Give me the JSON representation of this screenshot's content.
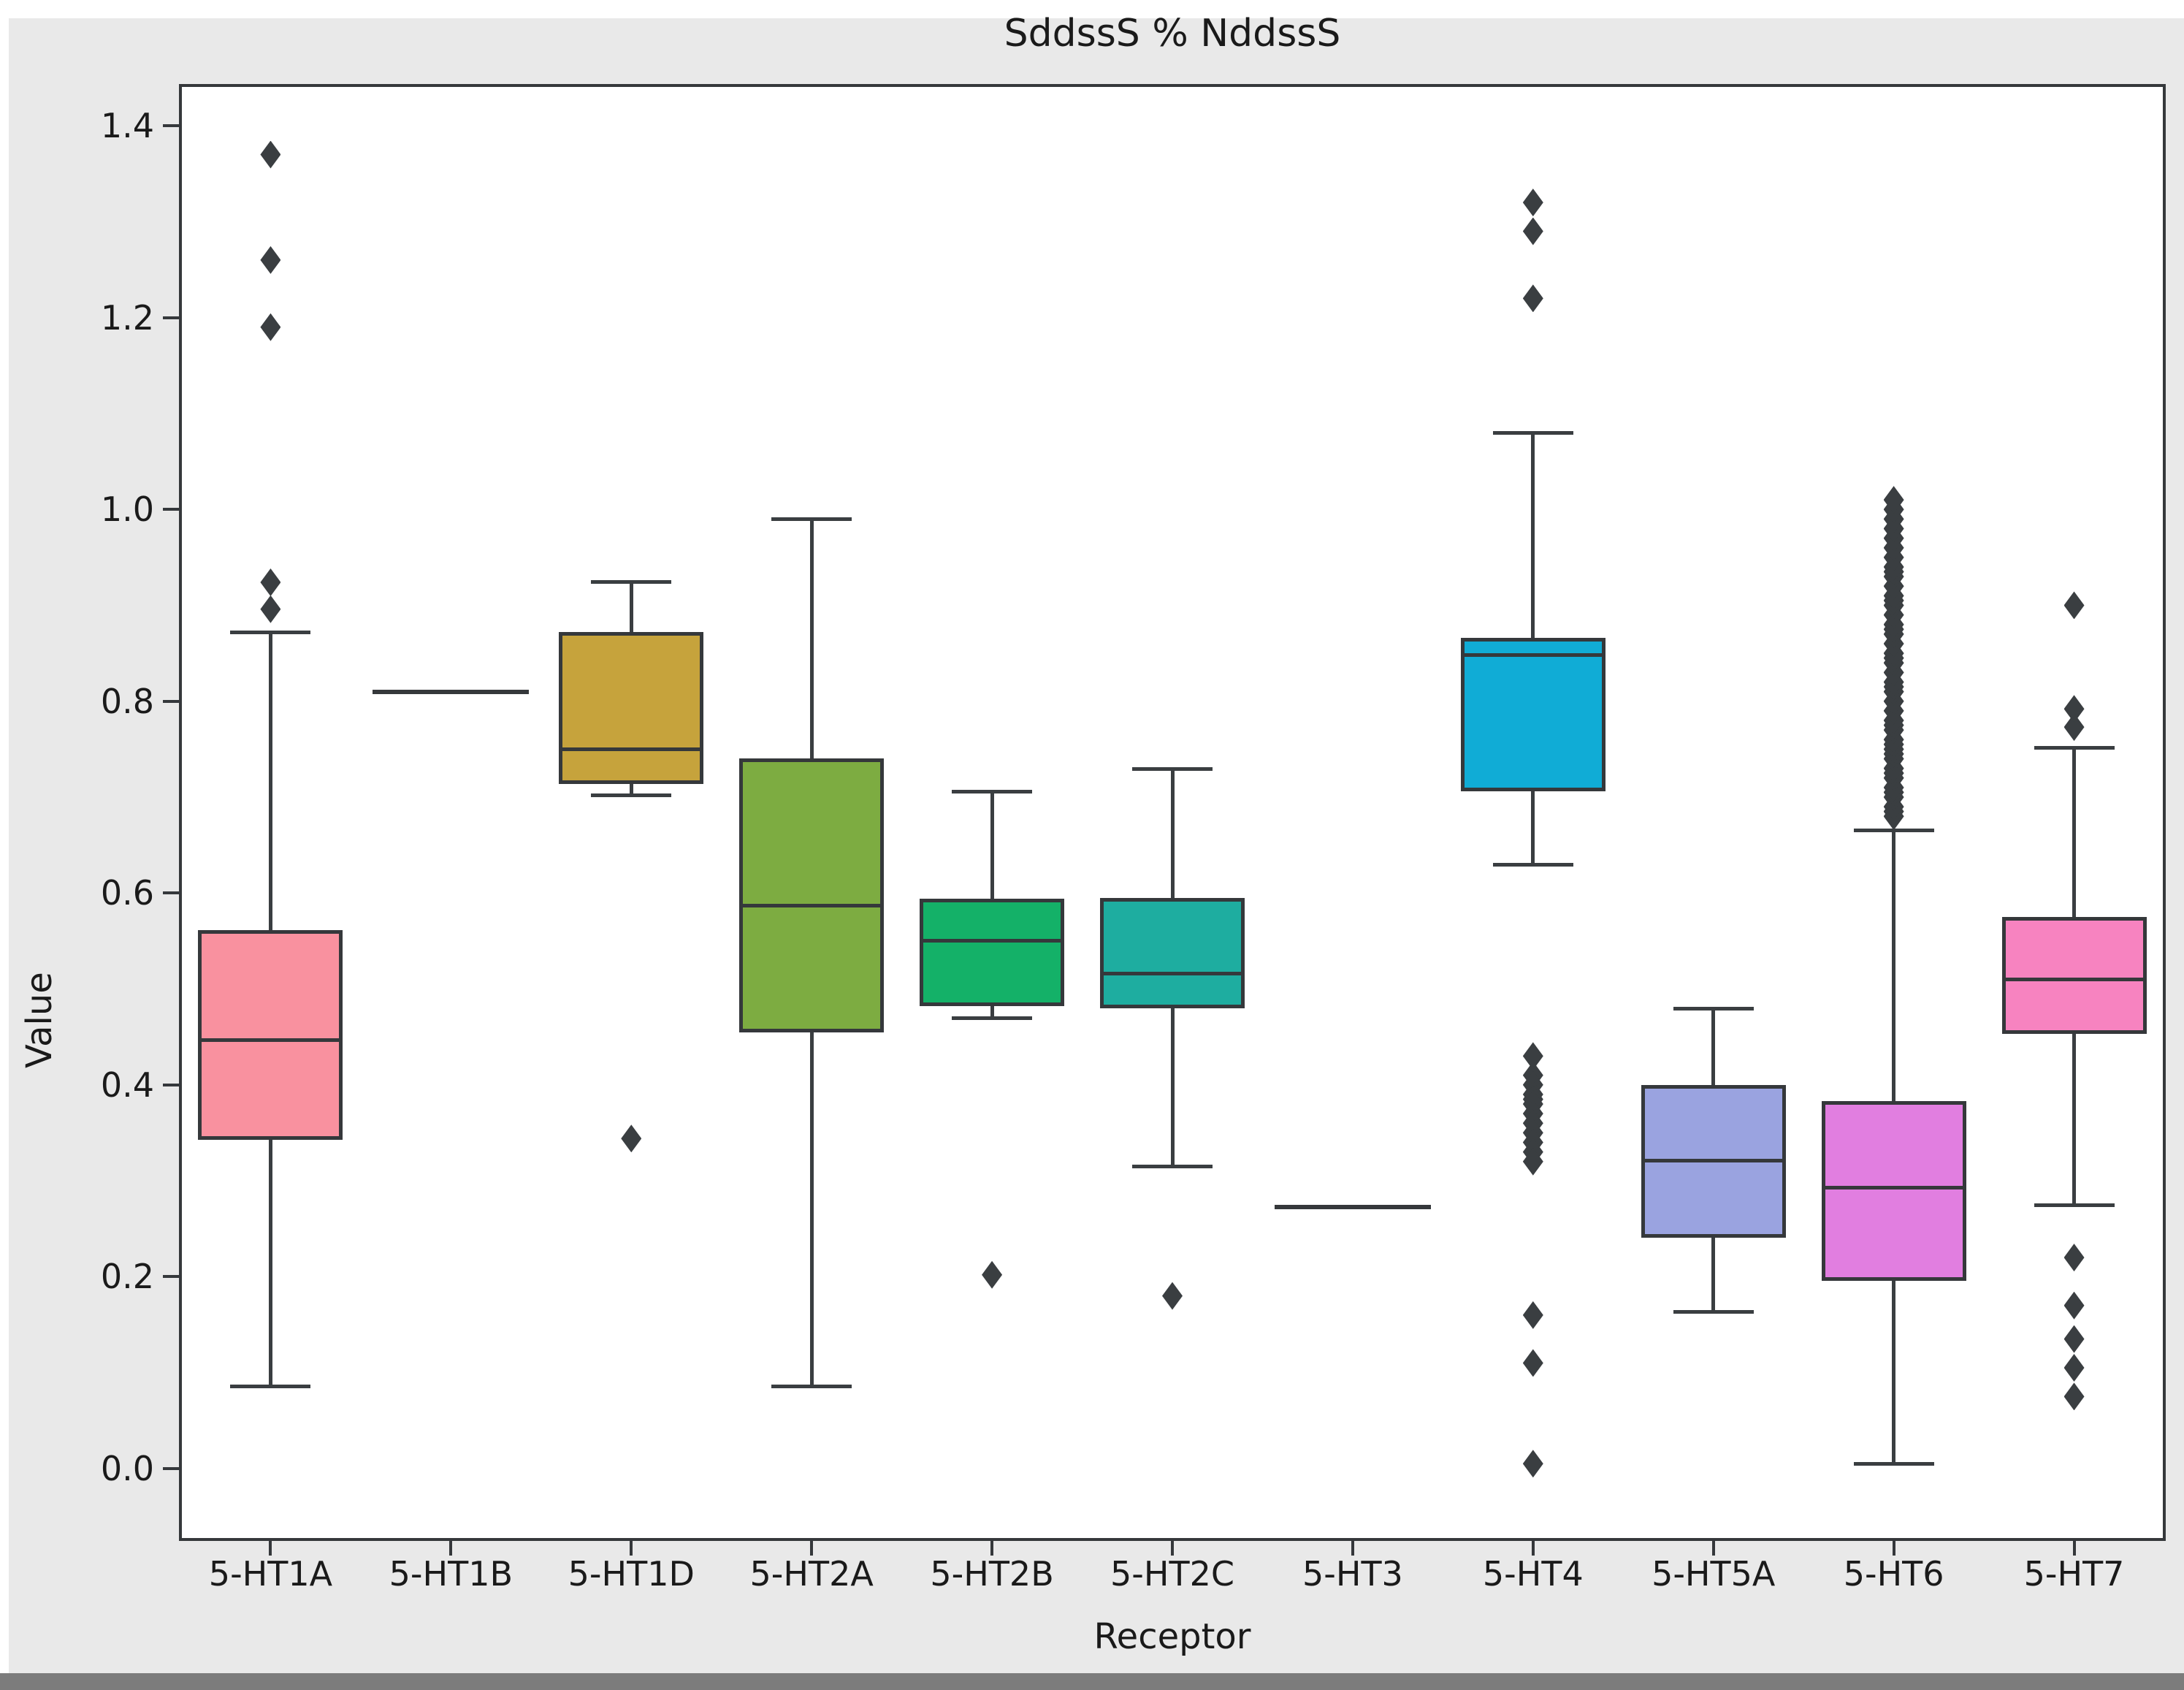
{
  "chart_data": {
    "type": "box",
    "title": "SddssS % NddssS",
    "xlabel": "Receptor",
    "ylabel": "Value",
    "ylim": [
      -0.074,
      1.442
    ],
    "yticks": [
      0.0,
      0.2,
      0.4,
      0.6,
      0.8,
      1.0,
      1.2,
      1.4
    ],
    "grid": false,
    "legend": "none",
    "marker": "diamond",
    "categories": [
      "5-HT1A",
      "5-HT1B",
      "5-HT1D",
      "5-HT2A",
      "5-HT2B",
      "5-HT2C",
      "5-HT3",
      "5-HT4",
      "5-HT5A",
      "5-HT6",
      "5-HT7"
    ],
    "series": [
      {
        "label": "5-HT1A",
        "color": "#f9919f",
        "whislo": 0.086,
        "q1": 0.343,
        "med": 0.447,
        "q3": 0.561,
        "whishi": 0.872,
        "fliers": [
          0.896,
          0.924,
          1.19,
          1.26,
          1.37
        ]
      },
      {
        "label": "5-HT1B",
        "color": null,
        "whislo": 0.81,
        "q1": 0.81,
        "med": 0.81,
        "q3": 0.81,
        "whishi": 0.81,
        "fliers": []
      },
      {
        "label": "5-HT1D",
        "color": "#c6a33c",
        "whislo": 0.702,
        "q1": 0.714,
        "med": 0.75,
        "q3": 0.872,
        "whishi": 0.925,
        "fliers": [
          0.344
        ]
      },
      {
        "label": "5-HT2A",
        "color": "#7dac41",
        "whislo": 0.086,
        "q1": 0.455,
        "med": 0.587,
        "q3": 0.74,
        "whishi": 0.99,
        "fliers": []
      },
      {
        "label": "5-HT2B",
        "color": "#14b168",
        "whislo": 0.47,
        "q1": 0.482,
        "med": 0.55,
        "q3": 0.594,
        "whishi": 0.706,
        "fliers": [
          0.202
        ]
      },
      {
        "label": "5-HT2C",
        "color": "#1eada0",
        "whislo": 0.315,
        "q1": 0.48,
        "med": 0.516,
        "q3": 0.595,
        "whishi": 0.73,
        "fliers": [
          0.18
        ]
      },
      {
        "label": "5-HT3",
        "color": null,
        "whislo": 0.273,
        "q1": 0.273,
        "med": 0.273,
        "q3": 0.273,
        "whishi": 0.273,
        "fliers": []
      },
      {
        "label": "5-HT4",
        "color": "#10acd6",
        "whislo": 0.63,
        "q1": 0.706,
        "med": 0.848,
        "q3": 0.866,
        "whishi": 1.08,
        "fliers": [
          1.22,
          1.29,
          1.32,
          0.43,
          0.41,
          0.4,
          0.39,
          0.385,
          0.38,
          0.37,
          0.36,
          0.35,
          0.34,
          0.33,
          0.32,
          0.16,
          0.11,
          0.005
        ]
      },
      {
        "label": "5-HT5A",
        "color": "#9aa3e0",
        "whislo": 0.164,
        "q1": 0.241,
        "med": 0.321,
        "q3": 0.4,
        "whishi": 0.48,
        "fliers": []
      },
      {
        "label": "5-HT6",
        "color": "#e17ee0",
        "whislo": 0.005,
        "q1": 0.196,
        "med": 0.293,
        "q3": 0.383,
        "whishi": 0.666,
        "fliers": [
          0.68,
          0.685,
          0.69,
          0.7,
          0.705,
          0.71,
          0.72,
          0.725,
          0.73,
          0.74,
          0.745,
          0.75,
          0.755,
          0.76,
          0.77,
          0.775,
          0.78,
          0.79,
          0.8,
          0.81,
          0.815,
          0.82,
          0.83,
          0.84,
          0.845,
          0.85,
          0.86,
          0.87,
          0.875,
          0.88,
          0.89,
          0.9,
          0.905,
          0.91,
          0.92,
          0.93,
          0.935,
          0.94,
          0.95,
          0.96,
          0.97,
          0.98,
          0.99,
          1.0,
          1.01
        ]
      },
      {
        "label": "5-HT7",
        "color": "#f783c0",
        "whislo": 0.275,
        "q1": 0.453,
        "med": 0.51,
        "q3": 0.575,
        "whishi": 0.752,
        "fliers": [
          0.773,
          0.792,
          0.9,
          0.22,
          0.17,
          0.135,
          0.105,
          0.075
        ]
      }
    ]
  },
  "figure": {
    "background_color": "#e9e9e9",
    "plot_background_color": "#ffffff",
    "line_color": "#35383b",
    "text_color": "#1a1a1a",
    "bottom_bar_color": "#7c7c7c"
  }
}
